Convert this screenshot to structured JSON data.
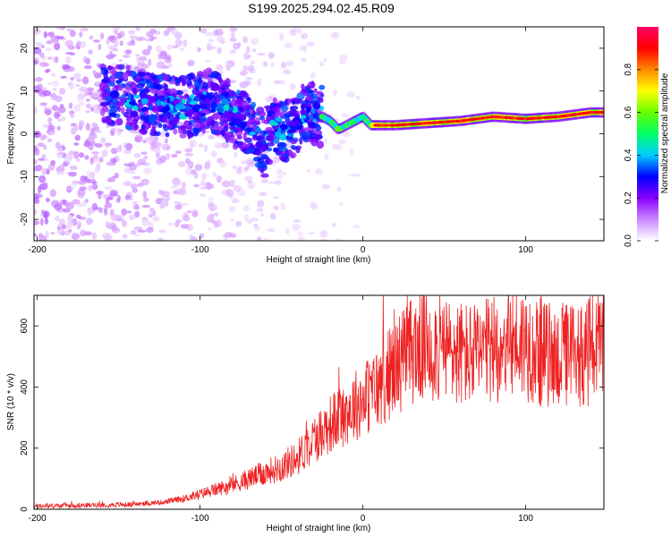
{
  "title": "S199.2025.294.02.45.R09",
  "chart_data": [
    {
      "type": "heatmap",
      "name": "spectrogram",
      "xlabel": "Height of straight line (km)",
      "ylabel": "Frequency (Hz)",
      "xlim": [
        -202,
        148
      ],
      "ylim": [
        -25,
        25
      ],
      "xticks": [
        -200,
        -100,
        0,
        100
      ],
      "xtick_labels": [
        "-200",
        "-100",
        "0",
        "100"
      ],
      "yticks": [
        -20,
        -10,
        0,
        10,
        20
      ],
      "ytick_labels": [
        "-20",
        "-10",
        "0",
        "10",
        "20"
      ],
      "ridge": {
        "description_points_x": [
          -150,
          -130,
          -110,
          -95,
          -85,
          -80,
          -72,
          -65,
          -60,
          -55,
          -50,
          -45,
          -40,
          -35,
          -30,
          -25,
          -20,
          -15,
          -10,
          -5,
          0,
          5,
          20,
          40,
          60,
          80,
          100,
          120,
          140,
          148
        ],
        "description_points_y": [
          9,
          7,
          6,
          8,
          6,
          4,
          3,
          0,
          -3,
          4,
          0,
          1,
          3,
          5,
          5,
          4,
          3,
          1,
          2,
          3,
          4,
          2,
          2,
          2.5,
          3,
          4,
          3.5,
          4,
          5,
          5
        ]
      },
      "colorbar": {
        "label": "Normalized spectral amplitude",
        "range": [
          0.0,
          1.0
        ],
        "ticks": [
          0.0,
          0.2,
          0.4,
          0.6,
          0.8
        ],
        "tick_labels": [
          "0.0",
          "0.2",
          "0.4",
          "0.6",
          "0.8"
        ],
        "colors": [
          "#ffffff",
          "#cc88ff",
          "#8800ff",
          "#0000ff",
          "#00ccff",
          "#00ff66",
          "#66ff00",
          "#ffff00",
          "#ff8800",
          "#ff0000",
          "#ff0066"
        ]
      }
    },
    {
      "type": "line",
      "name": "snr",
      "xlabel": "Height of straight line (km)",
      "ylabel": "SNR (10 * v/v)",
      "xlim": [
        -202,
        148
      ],
      "ylim": [
        0,
        700
      ],
      "xticks": [
        -200,
        -100,
        0,
        100
      ],
      "xtick_labels": [
        "-200",
        "-100",
        "0",
        "100"
      ],
      "yticks": [
        0,
        200,
        400,
        600
      ],
      "ytick_labels": [
        "0",
        "200",
        "400",
        "600"
      ],
      "color": "#ee2222",
      "x": [
        -202,
        -180,
        -160,
        -140,
        -120,
        -110,
        -100,
        -90,
        -80,
        -70,
        -60,
        -50,
        -40,
        -30,
        -20,
        -10,
        0,
        10,
        20,
        30,
        40,
        50,
        60,
        70,
        80,
        90,
        100,
        110,
        120,
        130,
        140,
        148
      ],
      "values": [
        10,
        12,
        14,
        16,
        25,
        35,
        50,
        65,
        80,
        100,
        120,
        140,
        170,
        230,
        280,
        320,
        360,
        400,
        470,
        520,
        540,
        520,
        510,
        500,
        520,
        560,
        540,
        510,
        500,
        510,
        520,
        520
      ]
    }
  ]
}
